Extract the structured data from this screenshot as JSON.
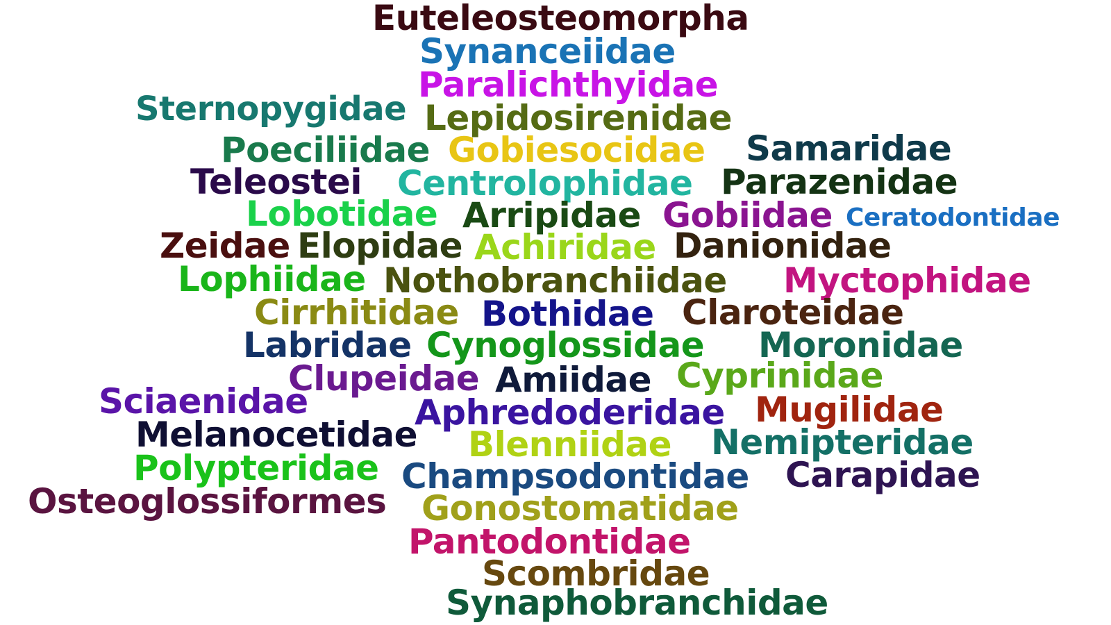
{
  "words": [
    {
      "text": "Euteleosteomorpha",
      "color": "#3a0a12"
    },
    {
      "text": "Synanceiidae",
      "color": "#1a73b5"
    },
    {
      "text": "Paralichthyidae",
      "color": "#c814e6"
    },
    {
      "text": "Sternopygidae",
      "color": "#17786f"
    },
    {
      "text": "Lepidosirenidae",
      "color": "#556b14"
    },
    {
      "text": "Poeciliidae",
      "color": "#197a4c"
    },
    {
      "text": "Gobiesocidae",
      "color": "#e8c514"
    },
    {
      "text": "Samaridae",
      "color": "#0f3a4a"
    },
    {
      "text": "Teleostei",
      "color": "#2a0a4a"
    },
    {
      "text": "Centrolophidae",
      "color": "#22b5a0"
    },
    {
      "text": "Parazenidae",
      "color": "#143314"
    },
    {
      "text": "Lobotidae",
      "color": "#1ad14a"
    },
    {
      "text": "Arripidae",
      "color": "#1a4a14"
    },
    {
      "text": "Gobiidae",
      "color": "#8a1490"
    },
    {
      "text": "Ceratodontidae",
      "color": "#1a6fc2"
    },
    {
      "text": "Zeidae",
      "color": "#4a0f0f"
    },
    {
      "text": "Elopidae",
      "color": "#2e3d12"
    },
    {
      "text": "Achiridae",
      "color": "#9ad61a"
    },
    {
      "text": "Danionidae",
      "color": "#33220f"
    },
    {
      "text": "Lophiidae",
      "color": "#1ab51a"
    },
    {
      "text": "Nothobranchiidae",
      "color": "#4a520f"
    },
    {
      "text": "Myctophidae",
      "color": "#c21480"
    },
    {
      "text": "Cirrhitidae",
      "color": "#8a8a14"
    },
    {
      "text": "Bothidae",
      "color": "#14148a"
    },
    {
      "text": "Claroteidae",
      "color": "#4a2410"
    },
    {
      "text": "Labridae",
      "color": "#143366"
    },
    {
      "text": "Cynoglossidae",
      "color": "#14961a"
    },
    {
      "text": "Moronidae",
      "color": "#146652"
    },
    {
      "text": "Clupeidae",
      "color": "#6a1a90"
    },
    {
      "text": "Amiidae",
      "color": "#0f1a3a"
    },
    {
      "text": "Cyprinidae",
      "color": "#5aa81a"
    },
    {
      "text": "Sciaenidae",
      "color": "#5a14a8"
    },
    {
      "text": "Aphredoderidae",
      "color": "#3a14a0"
    },
    {
      "text": "Mugilidae",
      "color": "#a0240f"
    },
    {
      "text": "Melanocetidae",
      "color": "#0f0f33"
    },
    {
      "text": "Blenniidae",
      "color": "#b0d214"
    },
    {
      "text": "Nemipteridae",
      "color": "#147066"
    },
    {
      "text": "Polypteridae",
      "color": "#1ac21a"
    },
    {
      "text": "Champsodontidae",
      "color": "#1a4a80"
    },
    {
      "text": "Carapidae",
      "color": "#2e1452"
    },
    {
      "text": "Osteoglossiformes",
      "color": "#5a1440"
    },
    {
      "text": "Gonostomatidae",
      "color": "#a0a01a"
    },
    {
      "text": "Pantodontidae",
      "color": "#c2146a"
    },
    {
      "text": "Scombridae",
      "color": "#66480f"
    },
    {
      "text": "Synaphobranchidae",
      "color": "#0f5a3a"
    }
  ]
}
